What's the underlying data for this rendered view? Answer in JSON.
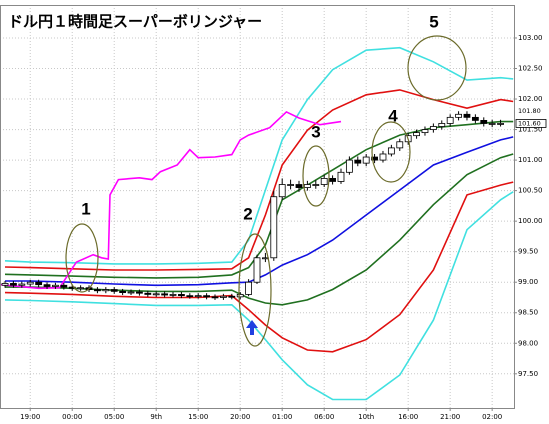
{
  "chart_data": {
    "type": "candlestick",
    "title": "ドル円１時間足スーパーボリンジャー",
    "xlim": [
      -3.6,
      57.6
    ],
    "ylim": [
      96.94,
      103.54
    ],
    "xticks": [
      {
        "value": 0,
        "label": "19:00"
      },
      {
        "value": 5,
        "label": "00:00"
      },
      {
        "value": 10,
        "label": "05:00"
      },
      {
        "value": 15,
        "label": "9th"
      },
      {
        "value": 20,
        "label": "15:00"
      },
      {
        "value": 25,
        "label": "20:00"
      },
      {
        "value": 30,
        "label": "01:00"
      },
      {
        "value": 35,
        "label": "06:00"
      },
      {
        "value": 40,
        "label": "10th"
      },
      {
        "value": 45,
        "label": "16:00"
      },
      {
        "value": 50,
        "label": "21:00"
      },
      {
        "value": 55,
        "label": "02:00"
      }
    ],
    "yticks": [
      {
        "value": 97.5,
        "label": "97.50"
      },
      {
        "value": 98,
        "label": "98.00"
      },
      {
        "value": 98.5,
        "label": "98.50"
      },
      {
        "value": 99,
        "label": "99.00"
      },
      {
        "value": 99.5,
        "label": "99.50"
      },
      {
        "value": 100,
        "label": "100.00"
      },
      {
        "value": 100.5,
        "label": "100.50"
      },
      {
        "value": 101,
        "label": "101.00"
      },
      {
        "value": 101.5,
        "label": "101.50"
      },
      {
        "value": 102,
        "label": "102.00"
      },
      {
        "value": 102.5,
        "label": "102.50"
      },
      {
        "value": 103,
        "label": "103.00"
      }
    ],
    "grid": true,
    "candles": {
      "x": [
        -3,
        -2,
        -1,
        0,
        1,
        2,
        3,
        4,
        5,
        6,
        7,
        8,
        9,
        10,
        11,
        12,
        13,
        14,
        15,
        16,
        17,
        18,
        19,
        20,
        21,
        22,
        23,
        24,
        25,
        26,
        27,
        28,
        29,
        30,
        31,
        32,
        33,
        34,
        35,
        36,
        37,
        38,
        39,
        40,
        41,
        42,
        43,
        44,
        45,
        46,
        47,
        48,
        49,
        50,
        51,
        52,
        53,
        54,
        55,
        56
      ],
      "open": [
        98.95,
        98.98,
        98.95,
        98.97,
        99.0,
        98.96,
        98.93,
        98.95,
        98.92,
        98.9,
        98.91,
        98.88,
        98.86,
        98.88,
        98.85,
        98.83,
        98.84,
        98.82,
        98.8,
        98.81,
        98.79,
        98.8,
        98.78,
        98.77,
        98.78,
        98.76,
        98.75,
        98.77,
        98.76,
        98.8,
        99.0,
        99.4,
        99.4,
        100.4,
        100.6,
        100.6,
        100.55,
        100.6,
        100.6,
        100.7,
        100.65,
        100.8,
        101.0,
        100.95,
        101.05,
        101.0,
        101.1,
        101.2,
        101.3,
        101.4,
        101.45,
        101.5,
        101.55,
        101.6,
        101.7,
        101.75,
        101.7,
        101.65,
        101.6,
        101.6
      ],
      "high": [
        99.02,
        99.02,
        99.01,
        99.04,
        99.04,
        99.0,
        98.99,
        98.99,
        98.96,
        98.95,
        98.95,
        98.92,
        98.92,
        98.92,
        98.89,
        98.88,
        98.88,
        98.86,
        98.85,
        98.85,
        98.84,
        98.84,
        98.82,
        98.82,
        98.82,
        98.8,
        98.81,
        98.81,
        98.84,
        99.05,
        99.45,
        99.48,
        100.5,
        100.7,
        100.68,
        100.66,
        100.66,
        100.67,
        100.76,
        100.75,
        100.86,
        101.06,
        101.06,
        101.1,
        101.1,
        101.15,
        101.25,
        101.35,
        101.45,
        101.5,
        101.55,
        101.6,
        101.65,
        101.75,
        101.8,
        101.8,
        101.75,
        101.7,
        101.66,
        101.66
      ],
      "low": [
        98.91,
        98.91,
        98.91,
        98.93,
        98.92,
        98.89,
        98.89,
        98.88,
        98.86,
        98.86,
        98.84,
        98.82,
        98.82,
        98.81,
        98.79,
        98.79,
        98.78,
        98.76,
        98.76,
        98.75,
        98.75,
        98.74,
        98.73,
        98.73,
        98.72,
        98.71,
        98.71,
        98.72,
        98.72,
        98.77,
        98.97,
        99.33,
        99.35,
        100.35,
        100.52,
        100.48,
        100.5,
        100.53,
        100.56,
        100.6,
        100.61,
        100.76,
        100.9,
        100.9,
        100.95,
        100.96,
        101.06,
        101.15,
        101.25,
        101.35,
        101.4,
        101.45,
        101.5,
        101.55,
        101.65,
        101.65,
        101.6,
        101.55,
        101.54,
        101.55
      ],
      "close": [
        98.98,
        98.95,
        98.97,
        99.0,
        98.96,
        98.93,
        98.95,
        98.92,
        98.9,
        98.91,
        98.88,
        98.86,
        98.88,
        98.85,
        98.83,
        98.84,
        98.82,
        98.8,
        98.81,
        98.79,
        98.8,
        98.78,
        98.77,
        98.78,
        98.76,
        98.75,
        98.77,
        98.76,
        98.8,
        99.0,
        99.4,
        99.4,
        100.4,
        100.6,
        100.6,
        100.55,
        100.6,
        100.6,
        100.7,
        100.65,
        100.8,
        101.0,
        100.95,
        101.05,
        101.0,
        101.1,
        101.2,
        101.3,
        101.4,
        101.45,
        101.5,
        101.55,
        101.6,
        101.7,
        101.75,
        101.7,
        101.65,
        101.6,
        101.6,
        101.6
      ],
      "up_color": "#ffffff",
      "down_color": "#000000"
    },
    "x": [
      -3,
      0,
      5,
      10,
      15,
      20,
      24,
      26,
      28,
      30,
      33,
      36,
      40,
      44,
      48,
      52,
      56,
      57.5
    ],
    "series": [
      {
        "color": "#40e0e0",
        "values": [
          99.35,
          99.33,
          99.32,
          99.3,
          99.3,
          99.31,
          99.33,
          99.69,
          100.51,
          101.33,
          101.99,
          102.48,
          102.8,
          102.84,
          102.61,
          102.31,
          102.35,
          102.33
        ]
      },
      {
        "color": "#e01010",
        "values": [
          99.25,
          99.24,
          99.22,
          99.2,
          99.2,
          99.21,
          99.22,
          99.4,
          100.1,
          100.92,
          101.49,
          101.82,
          102.07,
          102.15,
          101.99,
          101.85,
          101.99,
          101.96
        ]
      },
      {
        "color": "#207020",
        "values": [
          99.13,
          99.12,
          99.1,
          99.08,
          99.07,
          99.08,
          99.12,
          99.24,
          99.61,
          100.35,
          100.59,
          100.84,
          101.17,
          101.41,
          101.53,
          101.58,
          101.63,
          101.63
        ]
      },
      {
        "color": "#1010e0",
        "values": [
          99.02,
          99.02,
          99.0,
          98.97,
          98.95,
          98.96,
          98.99,
          99.0,
          99.12,
          99.28,
          99.45,
          99.69,
          100.1,
          100.51,
          100.92,
          101.13,
          101.33,
          101.38
        ]
      },
      {
        "color": "#207020",
        "values": [
          98.92,
          98.92,
          98.9,
          98.87,
          98.85,
          98.85,
          98.87,
          98.74,
          98.66,
          98.63,
          98.71,
          98.88,
          99.2,
          99.69,
          100.27,
          100.76,
          101.04,
          101.1
        ]
      },
      {
        "color": "#e01010",
        "values": [
          98.83,
          98.82,
          98.8,
          98.77,
          98.75,
          98.75,
          98.78,
          98.55,
          98.3,
          98.09,
          97.89,
          97.86,
          98.06,
          98.47,
          99.2,
          100.43,
          100.59,
          100.64
        ]
      },
      {
        "color": "#40e0e0",
        "values": [
          98.71,
          98.7,
          98.68,
          98.65,
          98.62,
          98.62,
          98.63,
          98.38,
          98.06,
          97.73,
          97.32,
          97.08,
          97.08,
          97.48,
          98.38,
          99.86,
          100.35,
          100.48
        ]
      },
      {
        "color": "#ff00ff",
        "x": [
          -3.5,
          1,
          3.5,
          5.5,
          7.5,
          8.5,
          9.3,
          9.5,
          10.5,
          13,
          14.5,
          15.5,
          17.5,
          19,
          20,
          22,
          24,
          25,
          26,
          28.5,
          30.5,
          32,
          34.5,
          37
        ],
        "values": [
          98.96,
          98.9,
          98.91,
          99.33,
          99.45,
          99.4,
          99.38,
          100.43,
          100.68,
          100.71,
          100.68,
          100.81,
          100.92,
          101.17,
          101.04,
          101.05,
          101.09,
          101.33,
          101.41,
          101.53,
          101.79,
          101.69,
          101.58,
          101.63
        ]
      }
    ],
    "price_labels": [
      {
        "value": 101.8,
        "label": "101.80",
        "color": "#ff00ff"
      },
      {
        "value": 101.6,
        "label": "101.60",
        "color": "#000000"
      }
    ],
    "annotations": [
      "1",
      "2",
      "3",
      "4",
      "5"
    ]
  }
}
